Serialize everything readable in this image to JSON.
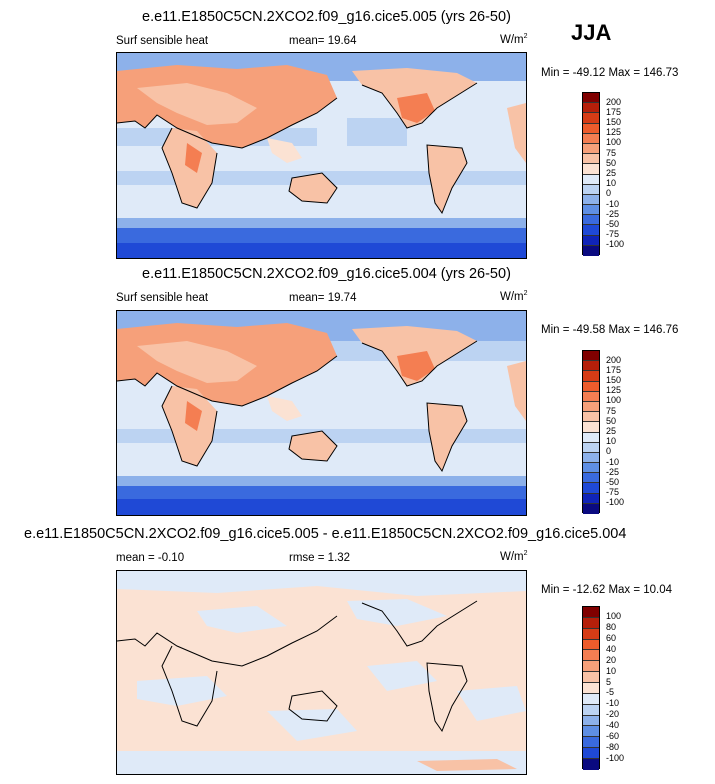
{
  "season": "JJA",
  "panels": [
    {
      "title": "e.e11.E1850C5CN.2XCO2.f09_g16.cice5.005 (yrs 26-50)",
      "left_label": "Surf sensible heat",
      "mean_label": "mean=",
      "mean_value": "19.64",
      "units": "W/m",
      "units_exp": "2",
      "minmax": "Min = -49.12 Max = 146.73",
      "levels": [
        "200",
        "175",
        "150",
        "125",
        "100",
        "75",
        "50",
        "25",
        "10",
        "0",
        "-10",
        "-25",
        "-50",
        "-75",
        "-100"
      ]
    },
    {
      "title": "e.e11.E1850C5CN.2XCO2.f09_g16.cice5.004 (yrs 26-50)",
      "left_label": "Surf sensible heat",
      "mean_label": "mean=",
      "mean_value": "19.74",
      "units": "W/m",
      "units_exp": "2",
      "minmax": "Min = -49.58 Max = 146.76",
      "levels": [
        "200",
        "175",
        "150",
        "125",
        "100",
        "75",
        "50",
        "25",
        "10",
        "0",
        "-10",
        "-25",
        "-50",
        "-75",
        "-100"
      ]
    },
    {
      "title": "e.e11.E1850C5CN.2XCO2.f09_g16.cice5.005 - e.e11.E1850C5CN.2XCO2.f09_g16.cice5.004",
      "left_label": "mean =  -0.10",
      "mean_label": "rmse =",
      "mean_value": "1.32",
      "units": "W/m",
      "units_exp": "2",
      "minmax": "Min = -12.62 Max =  10.04",
      "levels": [
        "100",
        "80",
        "60",
        "40",
        "20",
        "10",
        "5",
        "-5",
        "-10",
        "-20",
        "-40",
        "-60",
        "-80",
        "-100"
      ]
    }
  ],
  "colorbar_colors_16": [
    "#800000",
    "#b51f0a",
    "#d63c16",
    "#ed5c2c",
    "#f47e52",
    "#f6a07a",
    "#f8c2a6",
    "#fbe2d3",
    "#dfeaf8",
    "#bcd3f2",
    "#8db1ea",
    "#5f8fe4",
    "#3a6ade",
    "#1f49d6",
    "#1024b8",
    "#0a0a80"
  ],
  "colorbar_colors_15": [
    "#800000",
    "#b51f0a",
    "#d63c16",
    "#ed5c2c",
    "#f47e52",
    "#f6a07a",
    "#f8c2a6",
    "#fbe2d3",
    "#dfeaf8",
    "#bcd3f2",
    "#8db1ea",
    "#5f8fe4",
    "#3a6ade",
    "#1f49d6",
    "#0a0a80"
  ]
}
